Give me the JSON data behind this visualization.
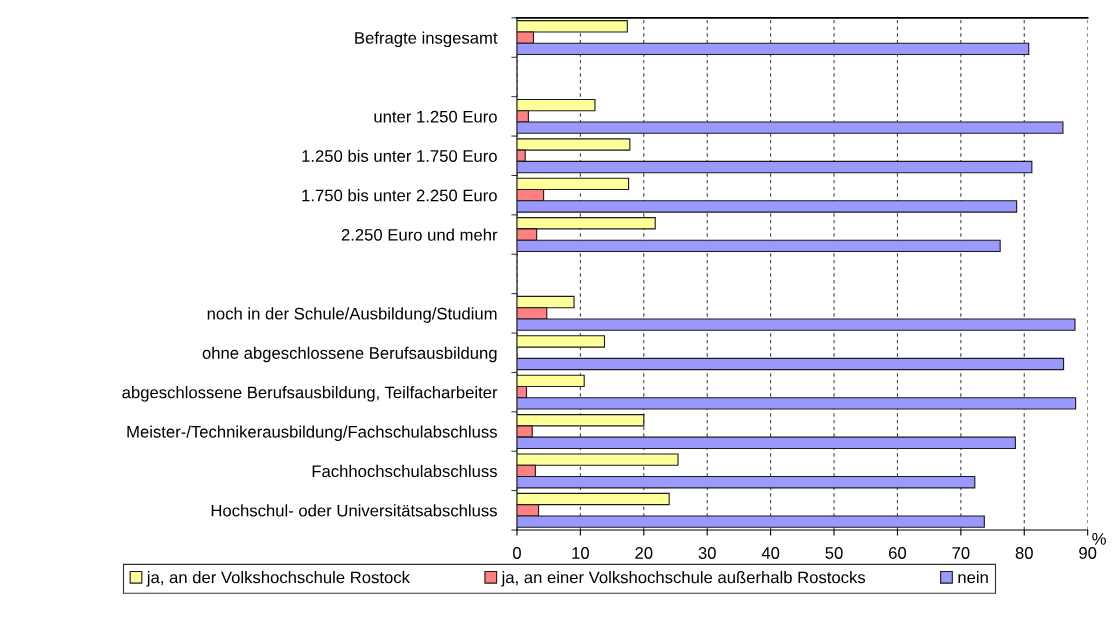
{
  "chart_data": {
    "type": "bar",
    "orientation": "horizontal",
    "categories": [
      "Befragte insgesamt",
      null,
      "unter 1.250 Euro",
      "1.250 bis unter 1.750 Euro",
      "1.750 bis unter 2.250 Euro",
      "2.250 Euro und mehr",
      null,
      "noch in der Schule/Ausbildung/Studium",
      "ohne abgeschlossene Berufsausbildung",
      "abgeschlossene Berufsausbildung, Teilfacharbeiter",
      "Meister-/Technikerausbildung/Fachschulabschluss",
      "Fachhochschulabschluss",
      "Hochschul- oder Universitätsabschluss"
    ],
    "series": [
      {
        "name": "ja, an der Volkshochschule Rostock",
        "color": "#ffff99",
        "values": [
          17.4,
          null,
          12.3,
          17.8,
          17.6,
          21.8,
          null,
          9.0,
          13.8,
          10.6,
          20.0,
          25.4,
          24.0
        ]
      },
      {
        "name": "ja, an einer Volkshochschule außerhalb Rostocks",
        "color": "#ff8080",
        "values": [
          2.6,
          null,
          1.8,
          1.3,
          4.2,
          3.1,
          null,
          4.7,
          null,
          1.5,
          2.4,
          2.9,
          3.4
        ]
      },
      {
        "name": "nein",
        "color": "#9999ff",
        "values": [
          80.7,
          null,
          86.1,
          81.2,
          78.8,
          76.2,
          null,
          88.0,
          86.2,
          88.1,
          78.6,
          72.2,
          73.7
        ]
      }
    ],
    "xlabel": "%",
    "xlim": [
      0,
      90
    ],
    "xticks": [
      0,
      10,
      20,
      30,
      40,
      50,
      60,
      70,
      80,
      90
    ],
    "grid": "x",
    "legend": "bottom"
  }
}
